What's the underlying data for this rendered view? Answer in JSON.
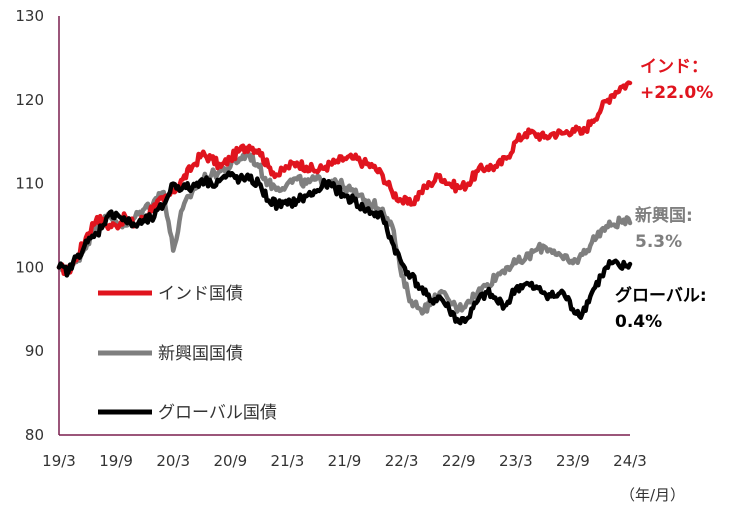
{
  "chart_data": {
    "type": "line",
    "title": "",
    "xlabel": "",
    "ylabel": "",
    "unit_label": "（年/月）",
    "x_ticks": [
      "19/3",
      "19/9",
      "20/3",
      "20/9",
      "21/3",
      "21/9",
      "22/3",
      "22/9",
      "23/3",
      "23/9",
      "24/3"
    ],
    "y_ticks": [
      80,
      90,
      100,
      110,
      120,
      130
    ],
    "ylim": [
      80,
      130
    ],
    "grid": false,
    "legend_placement": "left-middle",
    "series": [
      {
        "name": "インド国債",
        "color": "#e0141e",
        "end_label": [
          "インド：",
          "+22.0%"
        ],
        "x": [
          "2019-03",
          "2019-04",
          "2019-05",
          "2019-06",
          "2019-07",
          "2019-08",
          "2019-09",
          "2019-10",
          "2019-11",
          "2019-12",
          "2020-01",
          "2020-02",
          "2020-03",
          "2020-04",
          "2020-05",
          "2020-06",
          "2020-07",
          "2020-08",
          "2020-09",
          "2020-10",
          "2020-11",
          "2020-12",
          "2021-01",
          "2021-02",
          "2021-03",
          "2021-04",
          "2021-05",
          "2021-06",
          "2021-07",
          "2021-08",
          "2021-09",
          "2021-10",
          "2021-11",
          "2021-12",
          "2022-01",
          "2022-02",
          "2022-03",
          "2022-04",
          "2022-05",
          "2022-06",
          "2022-07",
          "2022-08",
          "2022-09",
          "2022-10",
          "2022-11",
          "2022-12",
          "2023-01",
          "2023-02",
          "2023-03",
          "2023-04",
          "2023-05",
          "2023-06",
          "2023-07",
          "2023-08",
          "2023-09",
          "2023-10",
          "2023-11",
          "2023-12",
          "2024-01",
          "2024-02",
          "2024-03"
        ],
        "values": [
          100,
          99.5,
          101.5,
          104,
          106,
          105,
          105,
          106,
          105,
          106,
          107.5,
          108,
          109,
          110.5,
          112,
          113.5,
          113,
          112,
          113,
          114,
          114.5,
          114,
          112,
          111,
          112,
          112.5,
          112,
          111.5,
          112,
          112.5,
          113,
          113,
          112.5,
          112,
          111,
          109,
          108,
          107.5,
          109,
          110,
          111,
          110,
          109.5,
          110,
          111.5,
          112,
          112,
          113,
          115,
          116,
          116,
          115.5,
          116,
          116,
          116.5,
          116,
          117.5,
          119,
          120.5,
          121.5,
          122
        ]
      },
      {
        "name": "新興国国債",
        "color": "#7f7f7f",
        "end_label": [
          "新興国:",
          "5.3%"
        ],
        "x": [
          "2019-03",
          "2019-04",
          "2019-05",
          "2019-06",
          "2019-07",
          "2019-08",
          "2019-09",
          "2019-10",
          "2019-11",
          "2019-12",
          "2020-01",
          "2020-02",
          "2020-03",
          "2020-04",
          "2020-05",
          "2020-06",
          "2020-07",
          "2020-08",
          "2020-09",
          "2020-10",
          "2020-11",
          "2020-12",
          "2021-01",
          "2021-02",
          "2021-03",
          "2021-04",
          "2021-05",
          "2021-06",
          "2021-07",
          "2021-08",
          "2021-09",
          "2021-10",
          "2021-11",
          "2021-12",
          "2022-01",
          "2022-02",
          "2022-03",
          "2022-04",
          "2022-05",
          "2022-06",
          "2022-07",
          "2022-08",
          "2022-09",
          "2022-10",
          "2022-11",
          "2022-12",
          "2023-01",
          "2023-02",
          "2023-03",
          "2023-04",
          "2023-05",
          "2023-06",
          "2023-07",
          "2023-08",
          "2023-09",
          "2023-10",
          "2023-11",
          "2023-12",
          "2024-01",
          "2024-02",
          "2024-03"
        ],
        "values": [
          100,
          99.5,
          101,
          103,
          105,
          106,
          105.5,
          105,
          106,
          107,
          108,
          109,
          102,
          107,
          109,
          110.5,
          111,
          111.5,
          112,
          113,
          113.5,
          112,
          110,
          109.5,
          110,
          110.5,
          110,
          110.5,
          110,
          110.5,
          109.5,
          109,
          108,
          107.5,
          107,
          105,
          99,
          96,
          95,
          95.5,
          97,
          96,
          95,
          96,
          97,
          98,
          99,
          100,
          100.5,
          101,
          102,
          102.5,
          102,
          101,
          100.5,
          101.5,
          103,
          104.5,
          105,
          105.5,
          105.3
        ]
      },
      {
        "name": "グローバル国債",
        "color": "#000000",
        "end_label": [
          "グローバル:",
          "0.4%"
        ],
        "x": [
          "2019-03",
          "2019-04",
          "2019-05",
          "2019-06",
          "2019-07",
          "2019-08",
          "2019-09",
          "2019-10",
          "2019-11",
          "2019-12",
          "2020-01",
          "2020-02",
          "2020-03",
          "2020-04",
          "2020-05",
          "2020-06",
          "2020-07",
          "2020-08",
          "2020-09",
          "2020-10",
          "2020-11",
          "2020-12",
          "2021-01",
          "2021-02",
          "2021-03",
          "2021-04",
          "2021-05",
          "2021-06",
          "2021-07",
          "2021-08",
          "2021-09",
          "2021-10",
          "2021-11",
          "2021-12",
          "2022-01",
          "2022-02",
          "2022-03",
          "2022-04",
          "2022-05",
          "2022-06",
          "2022-07",
          "2022-08",
          "2022-09",
          "2022-10",
          "2022-11",
          "2022-12",
          "2023-01",
          "2023-02",
          "2023-03",
          "2023-04",
          "2023-05",
          "2023-06",
          "2023-07",
          "2023-08",
          "2023-09",
          "2023-10",
          "2023-11",
          "2023-12",
          "2024-01",
          "2024-02",
          "2024-03"
        ],
        "values": [
          100,
          99.5,
          101.5,
          103,
          104,
          106,
          106.5,
          105.5,
          105,
          105.5,
          106,
          107.5,
          110,
          109.5,
          109.5,
          110.5,
          110,
          110.5,
          111,
          110.5,
          110.5,
          110,
          108,
          107.5,
          107.5,
          108,
          108.5,
          109,
          110,
          109.5,
          108.5,
          108,
          107,
          106.5,
          106,
          103,
          100.5,
          99,
          97.5,
          96,
          96.5,
          95,
          93.5,
          94,
          96,
          97,
          96,
          95.5,
          97.5,
          98,
          97.5,
          97,
          96.5,
          97,
          95,
          94.5,
          97,
          99,
          100.5,
          100,
          100.4
        ]
      }
    ]
  }
}
